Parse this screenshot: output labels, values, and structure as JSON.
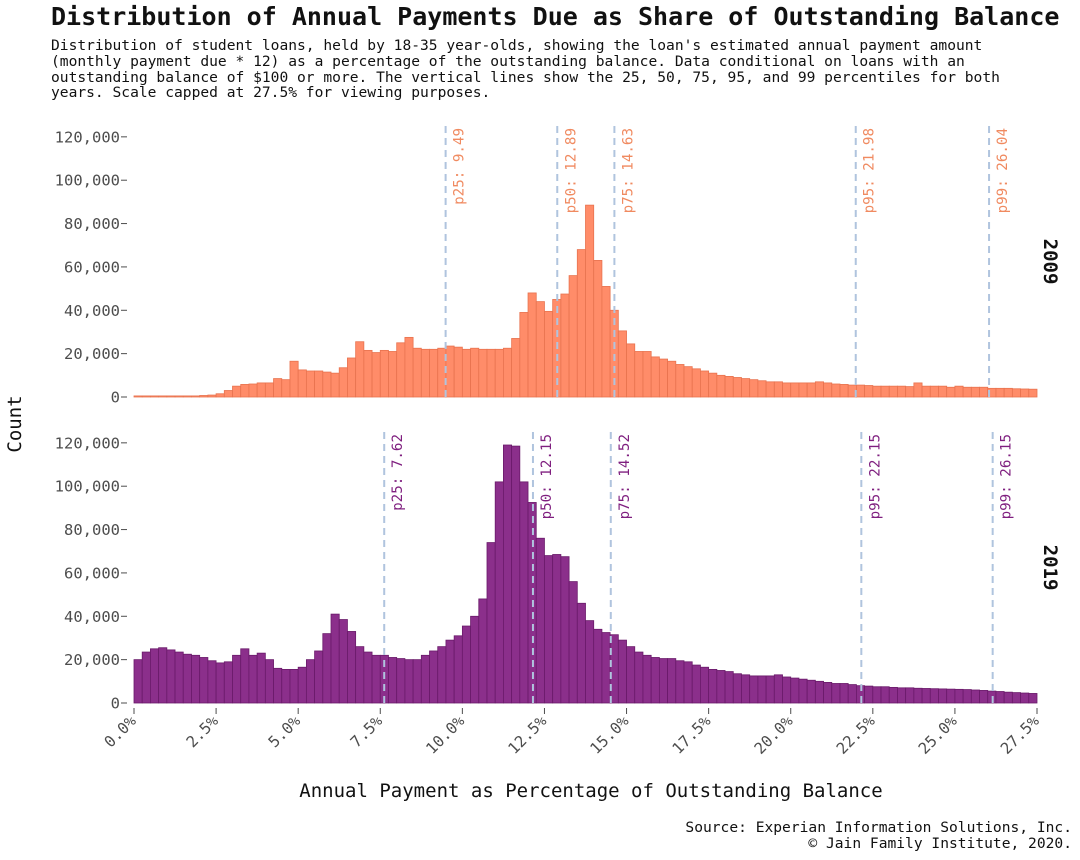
{
  "title": "Distribution of Annual Payments Due as Share of Outstanding Balance",
  "subtitle": "Distribution of student loans, held by 18-35 year-olds, showing the loan's estimated annual payment amount (monthly payment due * 12) as a percentage of the outstanding balance. Data conditional on loans with an outstanding balance of $100 or more. The vertical lines show the 25, 50, 75, 95, and 99 percentiles for both years. Scale capped at 27.5% for viewing purposes.",
  "source": {
    "line1": "Source: Experian Information Solutions, Inc.",
    "line2": "© Jain Family Institute, 2020."
  },
  "chart_data": {
    "type": "bar",
    "xlabel": "Annual Payment as Percentage of Outstanding Balance",
    "ylabel": "Count",
    "xlim": [
      0,
      27.5
    ],
    "ylim": [
      0,
      125000
    ],
    "x_ticks": [
      0,
      2.5,
      5,
      7.5,
      10,
      12.5,
      15,
      17.5,
      20,
      22.5,
      25,
      27.5
    ],
    "x_tick_labels": [
      "0.0%",
      "2.5%",
      "5.0%",
      "7.5%",
      "10.0%",
      "12.5%",
      "15.0%",
      "17.5%",
      "20.0%",
      "22.5%",
      "25.0%",
      "27.5%"
    ],
    "y_ticks": [
      0,
      20000,
      40000,
      60000,
      80000,
      100000,
      120000
    ],
    "y_tick_labels": [
      "0",
      "20,000",
      "40,000",
      "60,000",
      "80,000",
      "100,000",
      "120,000"
    ],
    "bin_width": 0.25,
    "bin_start": 0,
    "grid": false,
    "percentile_line_color": "#b0c4de",
    "panels": [
      {
        "strip_label": "2009",
        "fill_color": "#ff8c69",
        "edge_color": "#e8734f",
        "label_color": "#f08a60",
        "values": [
          500,
          500,
          500,
          500,
          500,
          500,
          500,
          500,
          700,
          900,
          1500,
          3000,
          5000,
          5800,
          6000,
          6500,
          6500,
          8500,
          8000,
          16500,
          12500,
          12000,
          12000,
          11500,
          11000,
          13500,
          18000,
          25500,
          21500,
          20500,
          21500,
          21000,
          25000,
          27500,
          22500,
          22000,
          22000,
          22500,
          23500,
          23000,
          22000,
          22500,
          22000,
          22000,
          22000,
          22500,
          27000,
          39000,
          48000,
          44000,
          39500,
          45000,
          47500,
          56000,
          68000,
          88500,
          63000,
          51000,
          40000,
          30500,
          24500,
          21000,
          21000,
          18500,
          17500,
          16500,
          15000,
          14000,
          13000,
          12000,
          11000,
          10000,
          9500,
          9000,
          8500,
          8000,
          7500,
          7000,
          7000,
          6500,
          6500,
          6500,
          6500,
          7000,
          6500,
          6000,
          5800,
          5500,
          5500,
          5300,
          5000,
          5000,
          5000,
          5000,
          4800,
          6500,
          5000,
          5000,
          5000,
          4500,
          5000,
          4500,
          4500,
          4500,
          4000,
          4000,
          4000,
          3800,
          3700,
          3600,
          3500,
          3300
        ],
        "percentiles": [
          {
            "label": "p25: 9.49",
            "value": 9.49
          },
          {
            "label": "p50: 12.89",
            "value": 12.89
          },
          {
            "label": "p75: 14.63",
            "value": 14.63
          },
          {
            "label": "p95: 21.98",
            "value": 21.98
          },
          {
            "label": "p99: 26.04",
            "value": 26.04
          }
        ]
      },
      {
        "strip_label": "2019",
        "fill_color": "#8b2f8b",
        "edge_color": "#6a1a6a",
        "label_color": "#7f1f7f",
        "values": [
          20000,
          23500,
          25000,
          25500,
          24500,
          23500,
          22500,
          22000,
          21000,
          19500,
          18500,
          19000,
          22000,
          25000,
          22000,
          23000,
          20000,
          16000,
          15500,
          15500,
          16500,
          20000,
          24000,
          32000,
          41000,
          38500,
          33000,
          26000,
          23500,
          22000,
          22000,
          21000,
          20500,
          20000,
          20000,
          22000,
          24000,
          26000,
          29000,
          31000,
          35500,
          40000,
          48000,
          74000,
          102000,
          119000,
          118500,
          102000,
          92500,
          76000,
          68000,
          68500,
          67500,
          56000,
          46000,
          38000,
          34000,
          32500,
          31500,
          29000,
          26000,
          23500,
          22000,
          21000,
          20500,
          20500,
          19500,
          19000,
          17500,
          16500,
          15500,
          15000,
          14500,
          13500,
          13000,
          12500,
          12500,
          12500,
          13000,
          12000,
          11500,
          11000,
          10500,
          10000,
          9500,
          9000,
          9000,
          8500,
          8000,
          7800,
          7500,
          7500,
          7200,
          7000,
          7000,
          6800,
          6700,
          6600,
          6500,
          6400,
          6300,
          6200,
          6000,
          5800,
          5500,
          5300,
          5000,
          4800,
          4600,
          4400
        ],
        "percentiles": [
          {
            "label": "p25: 7.62",
            "value": 7.62
          },
          {
            "label": "p50: 12.15",
            "value": 12.15
          },
          {
            "label": "p75: 14.52",
            "value": 14.52
          },
          {
            "label": "p95: 22.15",
            "value": 22.15
          },
          {
            "label": "p99: 26.15",
            "value": 26.15
          }
        ]
      }
    ]
  }
}
